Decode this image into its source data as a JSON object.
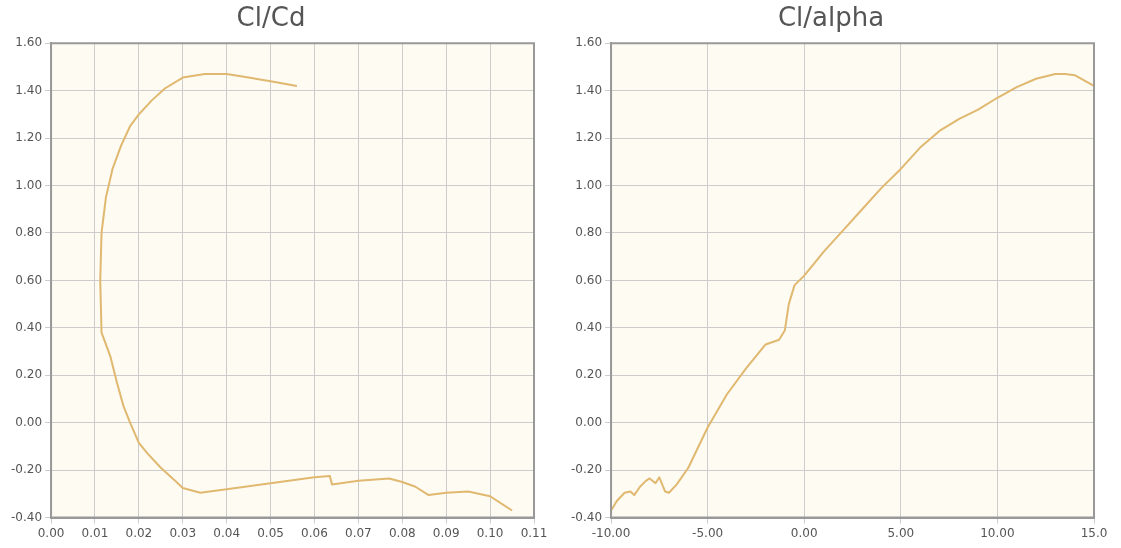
{
  "chart_data": [
    {
      "type": "line",
      "title": "Cl/Cd",
      "grid": true,
      "xlim": [
        0,
        0.11
      ],
      "xticks": [
        {
          "value": 0,
          "label": "0.00"
        },
        {
          "value": 0.01,
          "label": "0.01"
        },
        {
          "value": 0.02,
          "label": "0.02"
        },
        {
          "value": 0.03,
          "label": "0.03"
        },
        {
          "value": 0.04,
          "label": "0.04"
        },
        {
          "value": 0.05,
          "label": "0.05"
        },
        {
          "value": 0.06,
          "label": "0.06"
        },
        {
          "value": 0.07,
          "label": "0.07"
        },
        {
          "value": 0.08,
          "label": "0.08"
        },
        {
          "value": 0.09,
          "label": "0.09"
        },
        {
          "value": 0.1,
          "label": "0.10"
        },
        {
          "value": 0.11,
          "label": "0.11"
        }
      ],
      "ylim": [
        -0.4,
        1.6
      ],
      "yticks": [
        {
          "value": -0.4,
          "label": "-0.40"
        },
        {
          "value": -0.2,
          "label": "-0.20"
        },
        {
          "value": 0,
          "label": "0.00"
        },
        {
          "value": 0.2,
          "label": "0.20"
        },
        {
          "value": 0.4,
          "label": "0.40"
        },
        {
          "value": 0.6,
          "label": "0.60"
        },
        {
          "value": 0.8,
          "label": "0.80"
        },
        {
          "value": 1,
          "label": "1.00"
        },
        {
          "value": 1.2,
          "label": "1.20"
        },
        {
          "value": 1.4,
          "label": "1.40"
        },
        {
          "value": 1.6,
          "label": "1.60"
        }
      ],
      "series": [
        {
          "color": "#e0b870",
          "x": [
            0.105,
            0.1,
            0.095,
            0.09,
            0.086,
            0.083,
            0.08,
            0.077,
            0.07,
            0.064,
            0.0635,
            0.06,
            0.05,
            0.04,
            0.034,
            0.03,
            0.028,
            0.025,
            0.022,
            0.02,
            0.018,
            0.0165,
            0.015,
            0.0135,
            0.0125,
            0.0115,
            0.0112,
            0.0115,
            0.0125,
            0.014,
            0.016,
            0.018,
            0.02,
            0.023,
            0.026,
            0.03,
            0.035,
            0.04,
            0.045,
            0.05,
            0.056
          ],
          "values": [
            -0.37,
            -0.31,
            -0.29,
            -0.295,
            -0.305,
            -0.27,
            -0.25,
            -0.235,
            -0.245,
            -0.26,
            -0.225,
            -0.23,
            -0.255,
            -0.28,
            -0.295,
            -0.275,
            -0.24,
            -0.19,
            -0.13,
            -0.085,
            0,
            0.07,
            0.17,
            0.28,
            0.33,
            0.38,
            0.6,
            0.8,
            0.95,
            1.07,
            1.17,
            1.25,
            1.3,
            1.36,
            1.41,
            1.455,
            1.47,
            1.47,
            1.455,
            1.44,
            1.42
          ]
        }
      ]
    },
    {
      "type": "line",
      "title": "Cl/alpha",
      "grid": true,
      "xlim": [
        -10,
        15
      ],
      "xticks": [
        {
          "value": -10,
          "label": "-10.00"
        },
        {
          "value": -5,
          "label": "-5.00"
        },
        {
          "value": 0,
          "label": "0.00"
        },
        {
          "value": 5,
          "label": "5.00"
        },
        {
          "value": 10,
          "label": "10.00"
        },
        {
          "value": 15,
          "label": "15.0"
        }
      ],
      "ylim": [
        -0.4,
        1.6
      ],
      "yticks": [
        {
          "value": -0.4,
          "label": "-0.40"
        },
        {
          "value": -0.2,
          "label": "-0.20"
        },
        {
          "value": 0,
          "label": "0.00"
        },
        {
          "value": 0.2,
          "label": "0.20"
        },
        {
          "value": 0.4,
          "label": "0.40"
        },
        {
          "value": 0.6,
          "label": "0.60"
        },
        {
          "value": 0.8,
          "label": "0.80"
        },
        {
          "value": 1,
          "label": "1.00"
        },
        {
          "value": 1.2,
          "label": "1.20"
        },
        {
          "value": 1.4,
          "label": "1.40"
        },
        {
          "value": 1.6,
          "label": "1.60"
        }
      ],
      "series": [
        {
          "color": "#e0b870",
          "x": [
            -10,
            -9.7,
            -9.3,
            -9,
            -8.8,
            -8.5,
            -8.2,
            -8,
            -7.7,
            -7.5,
            -7.2,
            -7,
            -6.6,
            -6,
            -5,
            -4,
            -3,
            -2,
            -1.3,
            -1,
            -0.8,
            -0.5,
            0,
            1,
            2,
            3,
            4,
            5,
            6,
            7,
            8,
            9,
            10,
            11,
            12,
            13,
            13.5,
            14,
            15
          ],
          "values": [
            -0.37,
            -0.33,
            -0.295,
            -0.29,
            -0.305,
            -0.27,
            -0.245,
            -0.235,
            -0.255,
            -0.23,
            -0.29,
            -0.295,
            -0.26,
            -0.19,
            -0.02,
            0.12,
            0.23,
            0.33,
            0.35,
            0.39,
            0.5,
            0.58,
            0.62,
            0.72,
            0.81,
            0.9,
            0.99,
            1.07,
            1.16,
            1.23,
            1.28,
            1.32,
            1.37,
            1.415,
            1.45,
            1.47,
            1.47,
            1.465,
            1.42
          ]
        }
      ]
    }
  ]
}
